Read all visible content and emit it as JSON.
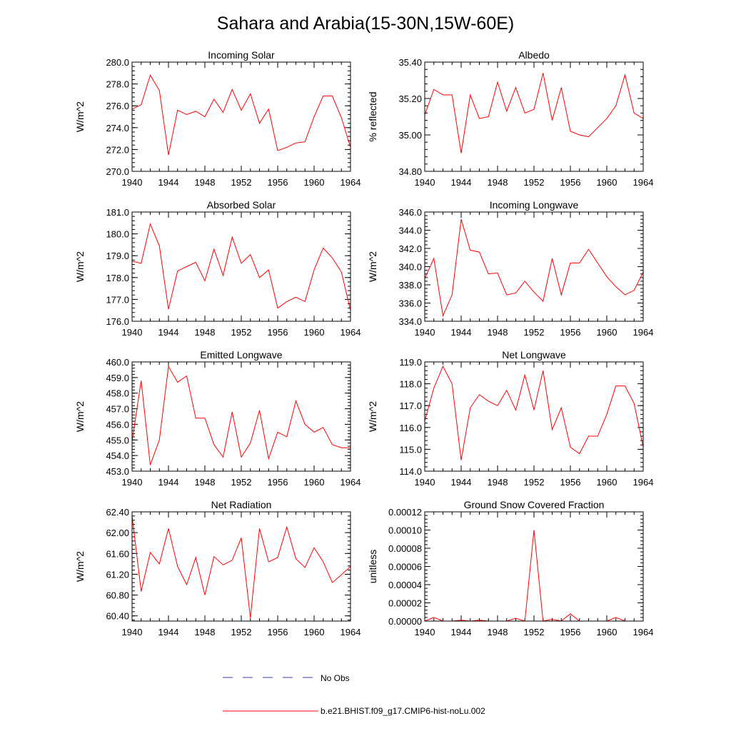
{
  "title": "Sahara and Arabia(15-30N,15W-60E)",
  "colors": {
    "model_line": "#ff0000",
    "obs_line": "#3a3aa8",
    "axes": "#000000"
  },
  "legend": {
    "obs_label": "No Obs",
    "model_label": "b.e21.BHIST.f09_g17.CMIP6-hist-noLu.002"
  },
  "chart_data": [
    {
      "type": "line",
      "title": "Incoming Solar",
      "ylabel": "W/m^2",
      "xlim": [
        1940,
        1964
      ],
      "ylim": [
        270.0,
        280.0
      ],
      "xticks": [
        "1940",
        "1944",
        "1948",
        "1952",
        "1956",
        "1960",
        "1964"
      ],
      "yticks": [
        "270.0",
        "272.0",
        "274.0",
        "276.0",
        "278.0",
        "280.0"
      ],
      "x": [
        1940,
        1941,
        1942,
        1943,
        1944,
        1945,
        1946,
        1947,
        1948,
        1949,
        1950,
        1951,
        1952,
        1953,
        1954,
        1955,
        1956,
        1957,
        1958,
        1959,
        1960,
        1961,
        1962,
        1963,
        1964
      ],
      "series": [
        {
          "values": [
            275.7,
            276.1,
            278.8,
            277.4,
            271.5,
            275.6,
            275.2,
            275.5,
            275.0,
            276.6,
            275.4,
            277.5,
            275.6,
            277.1,
            274.4,
            275.7,
            271.9,
            272.2,
            272.6,
            272.7,
            275.0,
            276.9,
            276.9,
            274.9,
            272.2
          ]
        }
      ]
    },
    {
      "type": "line",
      "title": "Albedo",
      "ylabel": "% reflected",
      "xlim": [
        1940,
        1964
      ],
      "ylim": [
        34.8,
        35.4
      ],
      "xticks": [
        "1940",
        "1944",
        "1948",
        "1952",
        "1956",
        "1960",
        "1964"
      ],
      "yticks": [
        "34.80",
        "35.00",
        "35.20",
        "35.40"
      ],
      "x": [
        1940,
        1941,
        1942,
        1943,
        1944,
        1945,
        1946,
        1947,
        1948,
        1949,
        1950,
        1951,
        1952,
        1953,
        1954,
        1955,
        1956,
        1957,
        1958,
        1959,
        1960,
        1961,
        1962,
        1963,
        1964
      ],
      "series": [
        {
          "values": [
            35.11,
            35.25,
            35.22,
            35.22,
            34.9,
            35.22,
            35.09,
            35.1,
            35.29,
            35.13,
            35.26,
            35.12,
            35.14,
            35.34,
            35.08,
            35.26,
            35.02,
            35.0,
            34.99,
            35.04,
            35.09,
            35.16,
            35.33,
            35.12,
            35.09
          ]
        }
      ]
    },
    {
      "type": "line",
      "title": "Absorbed Solar",
      "ylabel": "W/m^2",
      "xlim": [
        1940,
        1964
      ],
      "ylim": [
        176.0,
        181.0
      ],
      "xticks": [
        "1940",
        "1944",
        "1948",
        "1952",
        "1956",
        "1960",
        "1964"
      ],
      "yticks": [
        "176.0",
        "177.0",
        "178.0",
        "179.0",
        "180.0",
        "181.0"
      ],
      "x": [
        1940,
        1941,
        1942,
        1943,
        1944,
        1945,
        1946,
        1947,
        1948,
        1949,
        1950,
        1951,
        1952,
        1953,
        1954,
        1955,
        1956,
        1957,
        1958,
        1959,
        1960,
        1961,
        1962,
        1963,
        1964
      ],
      "series": [
        {
          "values": [
            178.75,
            178.65,
            180.45,
            179.45,
            176.55,
            178.3,
            178.5,
            178.7,
            177.85,
            179.3,
            178.1,
            179.85,
            178.65,
            179.05,
            178.0,
            178.35,
            176.6,
            176.9,
            177.1,
            176.9,
            178.35,
            179.35,
            178.9,
            178.25,
            176.5
          ]
        }
      ]
    },
    {
      "type": "line",
      "title": "Incoming Longwave",
      "ylabel": "W/m^2",
      "xlim": [
        1940,
        1964
      ],
      "ylim": [
        334.0,
        346.0
      ],
      "xticks": [
        "1940",
        "1944",
        "1948",
        "1952",
        "1956",
        "1960",
        "1964"
      ],
      "yticks": [
        "334.0",
        "336.0",
        "338.0",
        "340.0",
        "342.0",
        "344.0",
        "346.0"
      ],
      "x": [
        1940,
        1941,
        1942,
        1943,
        1944,
        1945,
        1946,
        1947,
        1948,
        1949,
        1950,
        1951,
        1952,
        1953,
        1954,
        1955,
        1956,
        1957,
        1958,
        1959,
        1960,
        1961,
        1962,
        1963,
        1964
      ],
      "series": [
        {
          "values": [
            338.7,
            340.9,
            334.6,
            336.9,
            345.2,
            341.8,
            341.6,
            339.2,
            339.3,
            336.9,
            337.1,
            338.4,
            337.2,
            336.2,
            340.9,
            336.9,
            340.4,
            340.4,
            341.9,
            340.4,
            338.9,
            337.8,
            336.9,
            337.4,
            339.4
          ]
        }
      ]
    },
    {
      "type": "line",
      "title": "Emitted Longwave",
      "ylabel": "W/m^2",
      "xlim": [
        1940,
        1964
      ],
      "ylim": [
        453.0,
        460.0
      ],
      "xticks": [
        "1940",
        "1944",
        "1948",
        "1952",
        "1956",
        "1960",
        "1964"
      ],
      "yticks": [
        "453.0",
        "454.0",
        "455.0",
        "456.0",
        "457.0",
        "458.0",
        "459.0",
        "460.0"
      ],
      "x": [
        1940,
        1941,
        1942,
        1943,
        1944,
        1945,
        1946,
        1947,
        1948,
        1949,
        1950,
        1951,
        1952,
        1953,
        1954,
        1955,
        1956,
        1957,
        1958,
        1959,
        1960,
        1961,
        1962,
        1963,
        1964
      ],
      "series": [
        {
          "values": [
            454.9,
            458.8,
            453.4,
            455.0,
            459.7,
            458.7,
            459.1,
            456.4,
            456.4,
            454.7,
            453.9,
            456.8,
            453.9,
            454.8,
            456.9,
            453.8,
            455.5,
            455.2,
            457.5,
            456.0,
            455.5,
            455.8,
            454.7,
            454.5,
            454.5
          ]
        }
      ]
    },
    {
      "type": "line",
      "title": "Net Longwave",
      "ylabel": "W/m^2",
      "xlim": [
        1940,
        1964
      ],
      "ylim": [
        114.0,
        119.0
      ],
      "xticks": [
        "1940",
        "1944",
        "1948",
        "1952",
        "1956",
        "1960",
        "1964"
      ],
      "yticks": [
        "114.0",
        "115.0",
        "116.0",
        "117.0",
        "118.0",
        "119.0"
      ],
      "x": [
        1940,
        1941,
        1942,
        1943,
        1944,
        1945,
        1946,
        1947,
        1948,
        1949,
        1950,
        1951,
        1952,
        1953,
        1954,
        1955,
        1956,
        1957,
        1958,
        1959,
        1960,
        1961,
        1962,
        1963,
        1964
      ],
      "series": [
        {
          "values": [
            116.3,
            117.8,
            118.8,
            118.0,
            114.5,
            116.9,
            117.5,
            117.2,
            117.0,
            117.7,
            116.8,
            118.4,
            116.8,
            118.6,
            115.9,
            116.9,
            115.1,
            114.8,
            115.6,
            115.6,
            116.6,
            117.9,
            117.9,
            117.1,
            115.1
          ]
        }
      ]
    },
    {
      "type": "line",
      "title": "Net Radiation",
      "ylabel": "W/m^2",
      "xlim": [
        1940,
        1964
      ],
      "ylim": [
        60.3,
        62.4
      ],
      "xticks": [
        "1940",
        "1944",
        "1948",
        "1952",
        "1956",
        "1960",
        "1964"
      ],
      "yticks": [
        "60.40",
        "60.80",
        "61.20",
        "61.60",
        "62.00",
        "62.40"
      ],
      "x": [
        1940,
        1941,
        1942,
        1943,
        1944,
        1945,
        1946,
        1947,
        1948,
        1949,
        1950,
        1951,
        1952,
        1953,
        1954,
        1955,
        1956,
        1957,
        1958,
        1959,
        1960,
        1961,
        1962,
        1963,
        1964
      ],
      "series": [
        {
          "values": [
            62.32,
            60.87,
            61.62,
            61.4,
            62.08,
            61.35,
            61.0,
            61.52,
            60.8,
            61.54,
            61.38,
            61.47,
            61.9,
            60.36,
            62.08,
            61.44,
            61.52,
            62.11,
            61.5,
            61.33,
            61.71,
            61.44,
            61.04,
            61.19,
            61.35
          ]
        }
      ]
    },
    {
      "type": "line",
      "title": "Ground Snow Covered Fraction",
      "ylabel": "unitless",
      "xlim": [
        1940,
        1964
      ],
      "ylim": [
        0.0,
        0.00012
      ],
      "xticks": [
        "1940",
        "1944",
        "1948",
        "1952",
        "1956",
        "1960",
        "1964"
      ],
      "yticks": [
        "0.00000",
        "0.00002",
        "0.00004",
        "0.00006",
        "0.00008",
        "0.00010",
        "0.00012"
      ],
      "x": [
        1940,
        1941,
        1942,
        1943,
        1944,
        1945,
        1946,
        1947,
        1948,
        1949,
        1950,
        1951,
        1952,
        1953,
        1954,
        1955,
        1956,
        1957,
        1958,
        1959,
        1960,
        1961,
        1962,
        1963,
        1964
      ],
      "series": [
        {
          "values": [
            0.0,
            4e-06,
            0.0,
            0.0,
            1e-06,
            0.0,
            1e-06,
            0.0,
            0.0,
            0.0,
            3e-06,
            0.0,
            0.0001,
            0.0,
            2e-06,
            0.0,
            8e-06,
            0.0,
            0.0,
            0.0,
            0.0,
            4e-06,
            0.0,
            0.0,
            0.0
          ]
        }
      ]
    }
  ]
}
